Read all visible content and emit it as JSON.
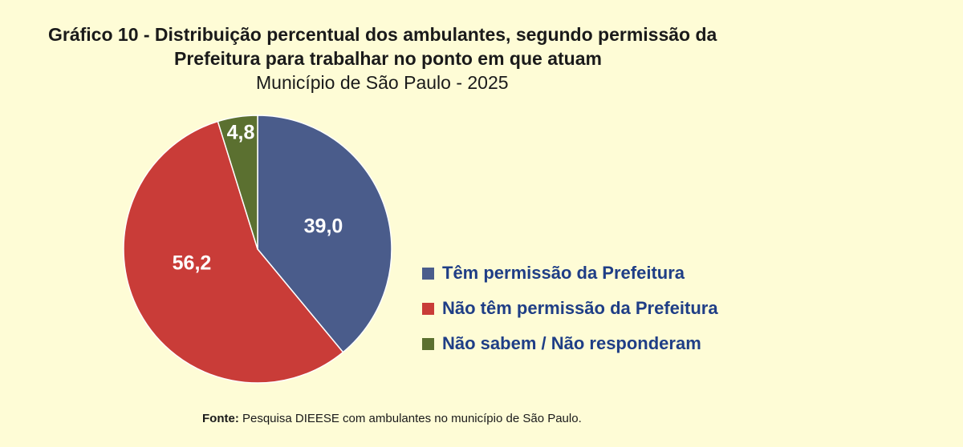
{
  "chart_data": {
    "type": "pie",
    "title_line1": "Gráfico 10 - Distribuição percentual dos ambulantes, segundo permissão da",
    "title_line2": "Prefeitura para trabalhar no ponto em que atuam",
    "subtitle": "Município de São Paulo - 2025",
    "slices": [
      {
        "label": "Têm permissão da Prefeitura",
        "value": 39.0,
        "display": "39,0",
        "color": "#4a5c8b"
      },
      {
        "label": "Não têm permissão da Prefeitura",
        "value": 56.2,
        "display": "56,2",
        "color": "#c93c38"
      },
      {
        "label": "Não sabem / Não responderam",
        "value": 4.8,
        "display": "4,8",
        "color": "#5b7030"
      }
    ],
    "legend_placement": "right"
  },
  "source": {
    "label": "Fonte:",
    "text": " Pesquisa DIEESE com ambulantes no município de São Paulo."
  }
}
